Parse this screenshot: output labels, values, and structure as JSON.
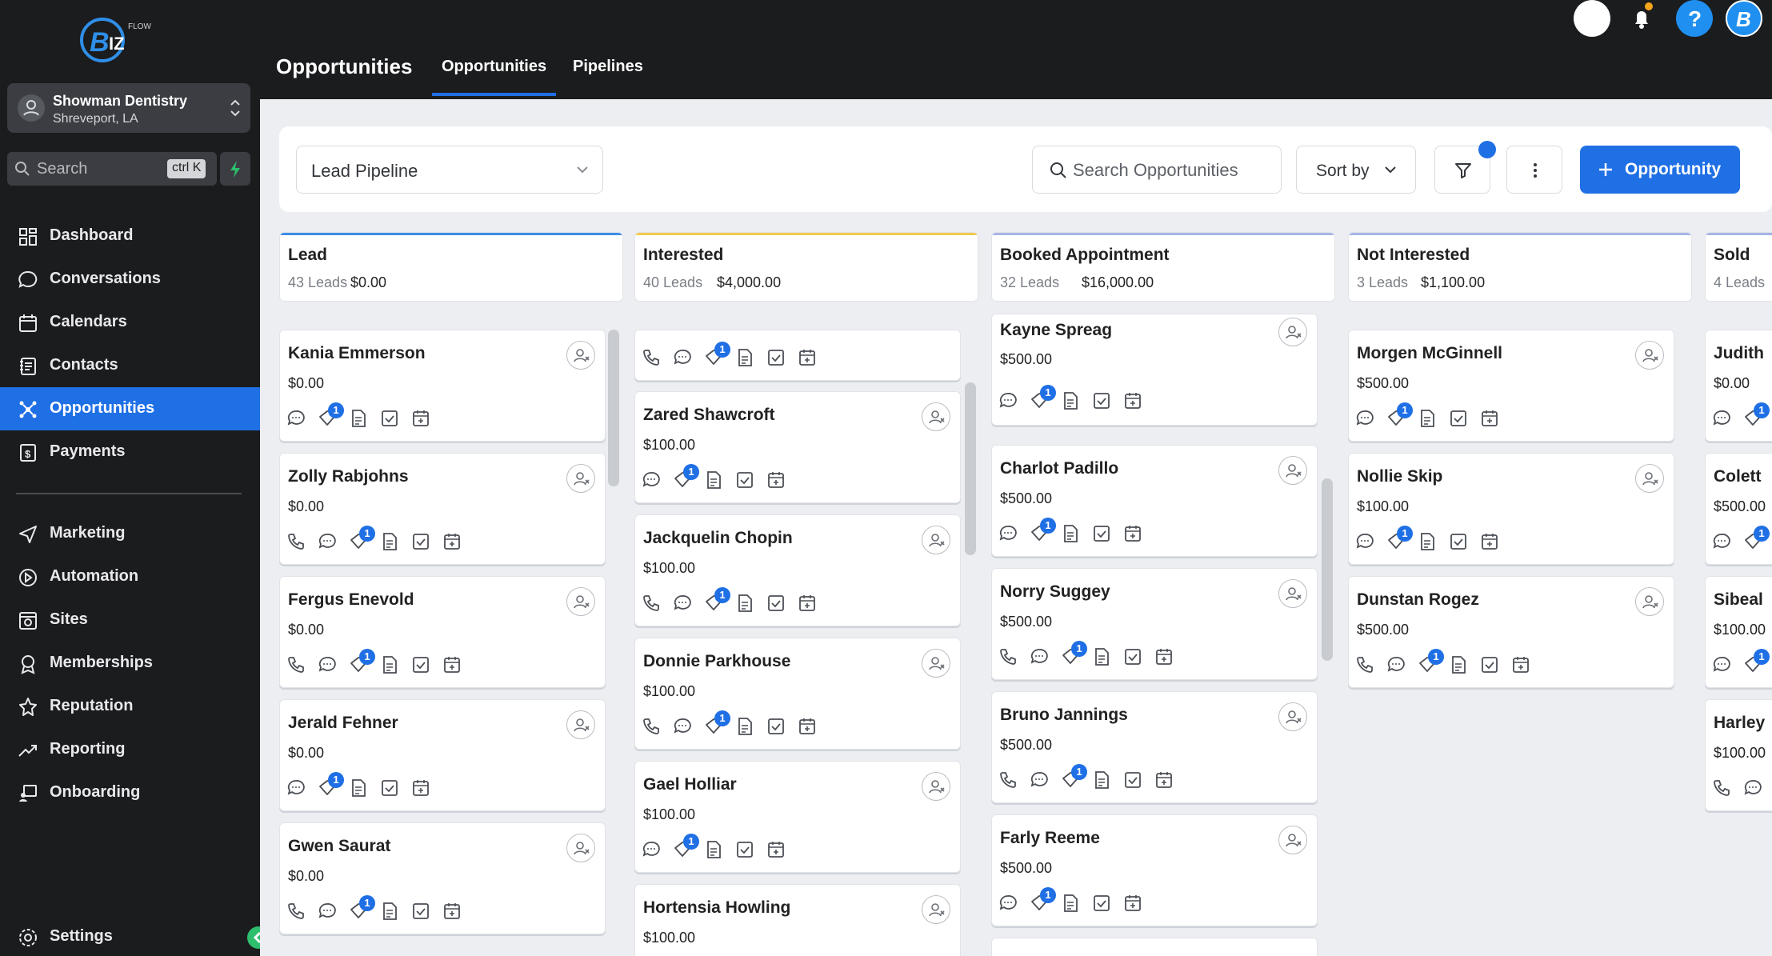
{
  "location": {
    "name": "Showman Dentistry",
    "city": "Shreveport, LA"
  },
  "search": {
    "label": "Search",
    "shortcut": "ctrl K"
  },
  "nav": {
    "items": [
      {
        "label": "Dashboard",
        "icon": "dashboard-icon"
      },
      {
        "label": "Conversations",
        "icon": "chat-icon"
      },
      {
        "label": "Calendars",
        "icon": "calendar-icon"
      },
      {
        "label": "Contacts",
        "icon": "contacts-icon"
      },
      {
        "label": "Opportunities",
        "icon": "opportunities-icon",
        "active": true
      },
      {
        "label": "Payments",
        "icon": "payments-icon"
      }
    ],
    "items2": [
      {
        "label": "Marketing",
        "icon": "send-icon"
      },
      {
        "label": "Automation",
        "icon": "automation-icon"
      },
      {
        "label": "Sites",
        "icon": "sites-icon"
      },
      {
        "label": "Memberships",
        "icon": "membership-icon"
      },
      {
        "label": "Reputation",
        "icon": "star-icon"
      },
      {
        "label": "Reporting",
        "icon": "trend-icon"
      },
      {
        "label": "Onboarding",
        "icon": "onboarding-icon"
      }
    ],
    "settings": "Settings"
  },
  "header": {
    "title": "Opportunities",
    "tabs": [
      "Opportunities",
      "Pipelines"
    ]
  },
  "toolbar": {
    "pipeline": "Lead Pipeline",
    "search_placeholder": "Search Opportunities",
    "sort_label": "Sort by",
    "add_label": "Opportunity"
  },
  "colors": {
    "accent": "#1f6fe5",
    "lead": "#3b8ee8",
    "interested": "#f2c94c",
    "booked": "#a7b4e6",
    "not_interested": "#a7b4e6",
    "sold": "#a7b4e6"
  },
  "columns": [
    {
      "name": "Lead",
      "leads": "43 Leads",
      "value": "$0.00",
      "cards": [
        {
          "name": "Kania Emmerson",
          "value": "$0.00",
          "phone": false
        },
        {
          "name": "Zolly Rabjohns",
          "value": "$0.00",
          "phone": true
        },
        {
          "name": "Fergus Enevold",
          "value": "$0.00",
          "phone": true
        },
        {
          "name": "Jerald Fehner",
          "value": "$0.00",
          "phone": false
        },
        {
          "name": "Gwen Saurat",
          "value": "$0.00",
          "phone": true
        }
      ]
    },
    {
      "name": "Interested",
      "leads": "40 Leads",
      "value": "$4,000.00",
      "cards": [
        {
          "name": "Zared Shawcroft",
          "value": "$100.00",
          "phone": false
        },
        {
          "name": "Jackquelin Chopin",
          "value": "$100.00",
          "phone": true
        },
        {
          "name": "Donnie Parkhouse",
          "value": "$100.00",
          "phone": true
        },
        {
          "name": "Gael Holliar",
          "value": "$100.00",
          "phone": false
        },
        {
          "name": "Hortensia Howling",
          "value": "$100.00",
          "phone": false
        }
      ]
    },
    {
      "name": "Booked Appointment",
      "leads": "32 Leads",
      "value": "$16,000.00",
      "cards": [
        {
          "name": "Kayne Spreag",
          "value": "$500.00",
          "phone": false
        },
        {
          "name": "Charlot Padillo",
          "value": "$500.00",
          "phone": false
        },
        {
          "name": "Norry Suggey",
          "value": "$500.00",
          "phone": true
        },
        {
          "name": "Bruno Jannings",
          "value": "$500.00",
          "phone": true
        },
        {
          "name": "Farly Reeme",
          "value": "$500.00",
          "phone": false
        }
      ]
    },
    {
      "name": "Not Interested",
      "leads": "3 Leads",
      "value": "$1,100.00",
      "cards": [
        {
          "name": "Morgen McGinnell",
          "value": "$500.00",
          "phone": false
        },
        {
          "name": "Nollie Skip",
          "value": "$100.00",
          "phone": false
        },
        {
          "name": "Dunstan Rogez",
          "value": "$500.00",
          "phone": true
        }
      ]
    },
    {
      "name": "Sold",
      "leads": "4 Leads",
      "value": "",
      "cards": [
        {
          "name": "Judith",
          "value": "$0.00",
          "phone": false
        },
        {
          "name": "Colett",
          "value": "$500.00",
          "phone": false
        },
        {
          "name": "Sibeal",
          "value": "$100.00",
          "phone": false
        },
        {
          "name": "Harley",
          "value": "$100.00",
          "phone": true
        }
      ]
    }
  ],
  "badge_count": "1"
}
